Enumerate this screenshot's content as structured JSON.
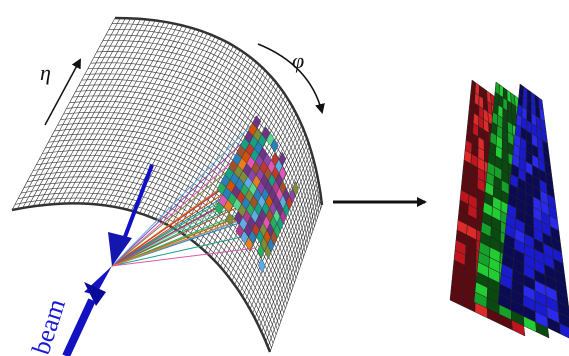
{
  "labels": {
    "eta": "η",
    "phi": "φ",
    "beam": "beam"
  }
}
